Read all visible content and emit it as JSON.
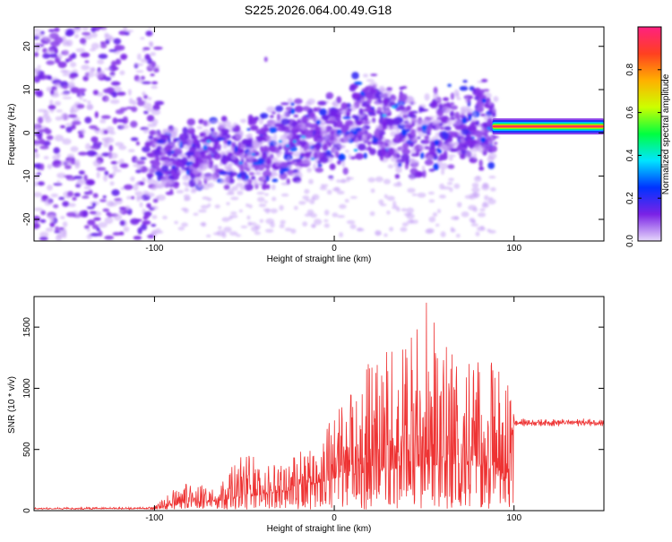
{
  "page": {
    "title": "S225.2026.064.00.49.G18"
  },
  "chart_data": [
    {
      "type": "heatmap",
      "title": "S225.2026.064.00.49.G18",
      "xlabel": "Height of straight line (km)",
      "ylabel": "Frequency (Hz)",
      "xlim": [
        -167,
        150
      ],
      "ylim": [
        -25,
        24.5
      ],
      "xticks": [
        -100,
        0,
        100
      ],
      "yticks": [
        -20,
        -10,
        0,
        10,
        20
      ],
      "grid": false,
      "colorbar": {
        "label": "Normalized spectral amplitude",
        "range": [
          0,
          1
        ],
        "ticks": [
          "0.0",
          "0.2",
          "0.4",
          "0.6",
          "0.8"
        ],
        "colors": [
          "#e6d8fb",
          "#7a22e6",
          "#0033ff",
          "#00e5ff",
          "#00ff40",
          "#ccff00",
          "#ffb000",
          "#ff4020",
          "#ff2080"
        ]
      },
      "features": {
        "noise_region_x": [
          -167,
          -100
        ],
        "signal_band": {
          "x": [
            88,
            150
          ],
          "frequency": 1.5,
          "amplitude": 0.95
        }
      }
    },
    {
      "type": "line",
      "xlabel": "Height of straight line (km)",
      "ylabel": "SNR (10 * v/v)",
      "xlim": [
        -167,
        150
      ],
      "ylim": [
        0,
        1750
      ],
      "xticks": [
        -100,
        0,
        100
      ],
      "yticks": [
        0,
        500,
        1000,
        1500
      ],
      "line_color": "#ee3333",
      "grid": false,
      "envelope": {
        "x": [
          -167,
          -100,
          -90,
          -80,
          -70,
          -60,
          -50,
          -40,
          -30,
          -20,
          -10,
          0,
          10,
          20,
          30,
          40,
          50,
          60,
          70,
          80,
          90,
          96,
          100,
          150
        ],
        "base": [
          15,
          15,
          40,
          60,
          70,
          90,
          110,
          130,
          150,
          180,
          220,
          260,
          290,
          320,
          330,
          340,
          360,
          380,
          380,
          360,
          300,
          200,
          720,
          720
        ],
        "peak": [
          25,
          30,
          180,
          230,
          230,
          300,
          520,
          400,
          360,
          500,
          650,
          780,
          1050,
          1300,
          1400,
          1400,
          1750,
          1380,
          1300,
          1250,
          1200,
          1100,
          780,
          770
        ]
      }
    }
  ]
}
